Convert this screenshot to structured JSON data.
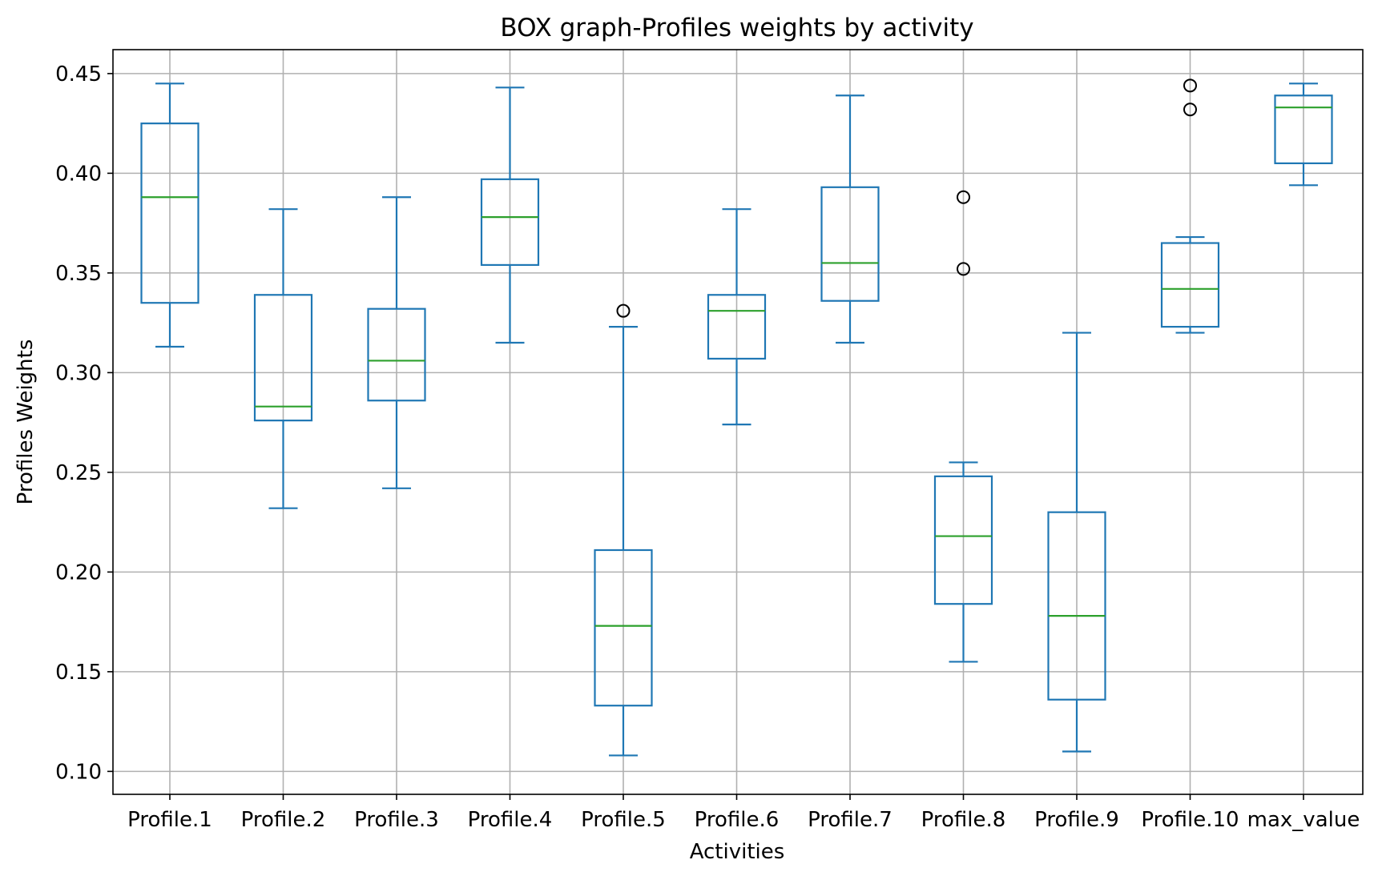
{
  "chart_data": {
    "type": "box",
    "title": "BOX graph-Profiles weights by activity",
    "xlabel": "Activities",
    "ylabel": "Profiles Weights",
    "ylim": [
      0.0885,
      0.462
    ],
    "yticks": [
      0.1,
      0.15,
      0.2,
      0.25,
      0.3,
      0.35,
      0.4,
      0.45
    ],
    "ytick_labels": [
      "0.10",
      "0.15",
      "0.20",
      "0.25",
      "0.30",
      "0.35",
      "0.40",
      "0.45"
    ],
    "grid": true,
    "colors": {
      "box": "#1f77b4",
      "median": "#2ca02c",
      "outlier": "#000000",
      "grid": "#b0b0b0"
    },
    "categories": [
      "Profile.1",
      "Profile.2",
      "Profile.3",
      "Profile.4",
      "Profile.5",
      "Profile.6",
      "Profile.7",
      "Profile.8",
      "Profile.9",
      "Profile.10",
      "max_value"
    ],
    "boxes": [
      {
        "whisker_low": 0.313,
        "q1": 0.335,
        "median": 0.388,
        "q3": 0.425,
        "whisker_high": 0.445,
        "outliers": []
      },
      {
        "whisker_low": 0.232,
        "q1": 0.276,
        "median": 0.283,
        "q3": 0.339,
        "whisker_high": 0.382,
        "outliers": []
      },
      {
        "whisker_low": 0.242,
        "q1": 0.286,
        "median": 0.306,
        "q3": 0.332,
        "whisker_high": 0.388,
        "outliers": []
      },
      {
        "whisker_low": 0.315,
        "q1": 0.354,
        "median": 0.378,
        "q3": 0.397,
        "whisker_high": 0.443,
        "outliers": []
      },
      {
        "whisker_low": 0.108,
        "q1": 0.133,
        "median": 0.173,
        "q3": 0.211,
        "whisker_high": 0.323,
        "outliers": [
          0.331
        ]
      },
      {
        "whisker_low": 0.274,
        "q1": 0.307,
        "median": 0.331,
        "q3": 0.339,
        "whisker_high": 0.382,
        "outliers": []
      },
      {
        "whisker_low": 0.315,
        "q1": 0.336,
        "median": 0.355,
        "q3": 0.393,
        "whisker_high": 0.439,
        "outliers": []
      },
      {
        "whisker_low": 0.155,
        "q1": 0.184,
        "median": 0.218,
        "q3": 0.248,
        "whisker_high": 0.255,
        "outliers": [
          0.352,
          0.388
        ]
      },
      {
        "whisker_low": 0.11,
        "q1": 0.136,
        "median": 0.178,
        "q3": 0.23,
        "whisker_high": 0.32,
        "outliers": []
      },
      {
        "whisker_low": 0.32,
        "q1": 0.323,
        "median": 0.342,
        "q3": 0.365,
        "whisker_high": 0.368,
        "outliers": [
          0.432,
          0.444
        ]
      },
      {
        "whisker_low": 0.394,
        "q1": 0.405,
        "median": 0.433,
        "q3": 0.439,
        "whisker_high": 0.445,
        "outliers": []
      }
    ]
  }
}
